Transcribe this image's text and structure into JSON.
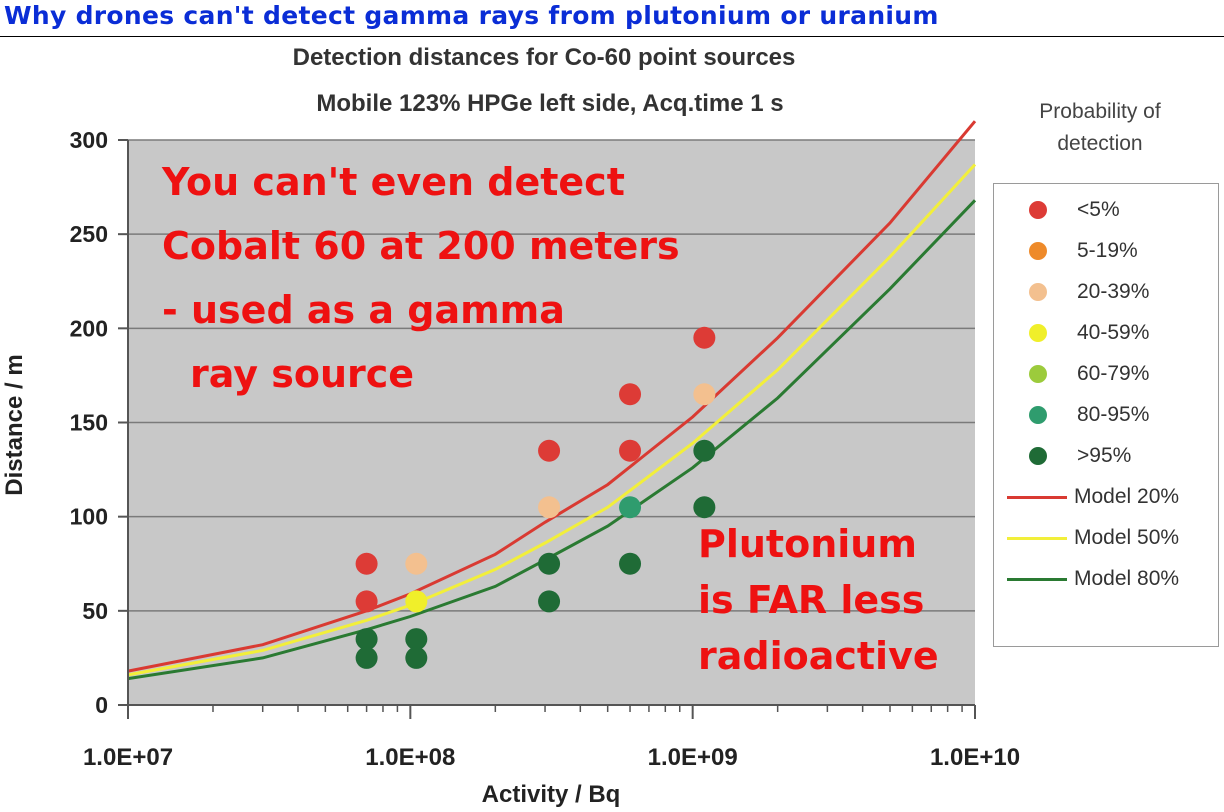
{
  "banner": {
    "text": "Why drones can't detect gamma rays from plutonium or uranium",
    "color": "#0a2dd6"
  },
  "chart_data": {
    "type": "scatter",
    "title": "Detection distances for Co-60 point sources",
    "subtitle": "Mobile 123% HPGe left side, Acq.time 1 s",
    "xlabel": "Activity / Bq",
    "ylabel": "Distance  / m",
    "xscale": "log",
    "xlim": [
      10000000.0,
      10000000000.0
    ],
    "ylim": [
      0,
      300
    ],
    "xticks": [
      {
        "value": 10000000.0,
        "label": "1.0E+07"
      },
      {
        "value": 100000000.0,
        "label": "1.0E+08"
      },
      {
        "value": 1000000000.0,
        "label": "1.0E+09"
      },
      {
        "value": 10000000000.0,
        "label": "1.0E+10"
      }
    ],
    "yticks": [
      0,
      50,
      100,
      150,
      200,
      250,
      300
    ],
    "grid": "horizontal",
    "plot_background": "#c8c8c8",
    "legend_title": "Probability of detection",
    "legend_title_lines": [
      "Probability of",
      "detection"
    ],
    "legend_position": "right",
    "series": [
      {
        "name": "<5%",
        "kind": "points",
        "color": "#dd3b36",
        "points": [
          [
            70000000.0,
            75
          ],
          [
            70000000.0,
            55
          ],
          [
            310000000.0,
            135
          ],
          [
            600000000.0,
            165
          ],
          [
            600000000.0,
            135
          ],
          [
            1100000000.0,
            195
          ]
        ]
      },
      {
        "name": "5-19%",
        "kind": "points",
        "color": "#ee8a2a",
        "points": []
      },
      {
        "name": "20-39%",
        "kind": "points",
        "color": "#f3c08f",
        "points": [
          [
            105000000.0,
            75
          ],
          [
            310000000.0,
            105
          ],
          [
            1100000000.0,
            165
          ]
        ]
      },
      {
        "name": "40-59%",
        "kind": "points",
        "color": "#f0ef2a",
        "points": [
          [
            105000000.0,
            55
          ]
        ]
      },
      {
        "name": "60-79%",
        "kind": "points",
        "color": "#9ccb3c",
        "points": []
      },
      {
        "name": "80-95%",
        "kind": "points",
        "color": "#2f9c6e",
        "points": [
          [
            600000000.0,
            105
          ]
        ]
      },
      {
        "name": ">95%",
        "kind": "points",
        "color": "#1f6b36",
        "points": [
          [
            70000000.0,
            35
          ],
          [
            70000000.0,
            25
          ],
          [
            105000000.0,
            35
          ],
          [
            105000000.0,
            25
          ],
          [
            310000000.0,
            75
          ],
          [
            310000000.0,
            55
          ],
          [
            600000000.0,
            75
          ],
          [
            1100000000.0,
            135
          ],
          [
            1100000000.0,
            105
          ]
        ]
      },
      {
        "name": "Model 20%",
        "kind": "line",
        "color": "#d93a32",
        "x": [
          10000000.0,
          30000000.0,
          70000000.0,
          100000000.0,
          200000000.0,
          300000000.0,
          500000000.0,
          1000000000.0,
          2000000000.0,
          5000000000.0,
          10000000000.0
        ],
        "y": [
          18,
          32,
          50,
          59,
          80,
          97,
          117,
          153,
          195,
          256,
          310
        ]
      },
      {
        "name": "Model 50%",
        "kind": "line",
        "color": "#f2ef3a",
        "x": [
          10000000.0,
          30000000.0,
          70000000.0,
          100000000.0,
          200000000.0,
          300000000.0,
          500000000.0,
          1000000000.0,
          2000000000.0,
          5000000000.0,
          10000000000.0
        ],
        "y": [
          16,
          29,
          45,
          53,
          72,
          86,
          105,
          139,
          178,
          238,
          287
        ]
      },
      {
        "name": "Model 80%",
        "kind": "line",
        "color": "#2a7a32",
        "x": [
          10000000.0,
          30000000.0,
          70000000.0,
          100000000.0,
          200000000.0,
          300000000.0,
          500000000.0,
          1000000000.0,
          2000000000.0,
          5000000000.0,
          10000000000.0
        ],
        "y": [
          14,
          25,
          40,
          47,
          63,
          77,
          95,
          126,
          163,
          221,
          268
        ]
      }
    ]
  },
  "annotations": {
    "color": "#ee1111",
    "cobalt": [
      "You can't even detect",
      "Cobalt 60 at 200 meters",
      "- used as a gamma",
      "ray source"
    ],
    "plutonium": [
      "Plutonium",
      "is FAR less",
      "radioactive"
    ]
  }
}
